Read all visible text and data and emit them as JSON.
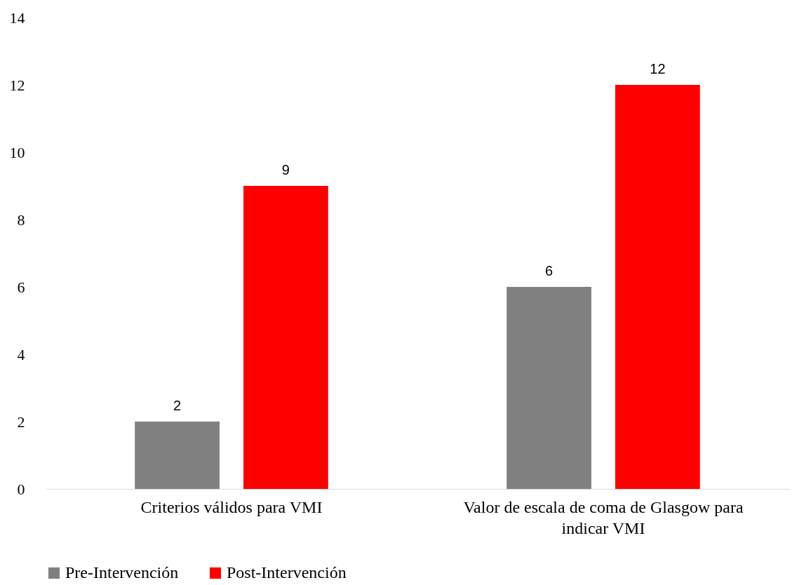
{
  "chart_data": {
    "type": "bar",
    "categories": [
      "Criterios válidos para VMI",
      "Valor de escala de coma de Glasgow para\nindicar VMI"
    ],
    "series": [
      {
        "name": "Pre-Intervención",
        "color": "#808080",
        "values": [
          2,
          6
        ]
      },
      {
        "name": "Post-Intervención",
        "color": "#ff0000",
        "values": [
          9,
          12
        ]
      }
    ],
    "ylim": [
      0,
      14
    ],
    "yticks": [
      0,
      2,
      4,
      6,
      8,
      10,
      12,
      14
    ],
    "grid": false,
    "legend": "bottom",
    "data_labels": true
  }
}
